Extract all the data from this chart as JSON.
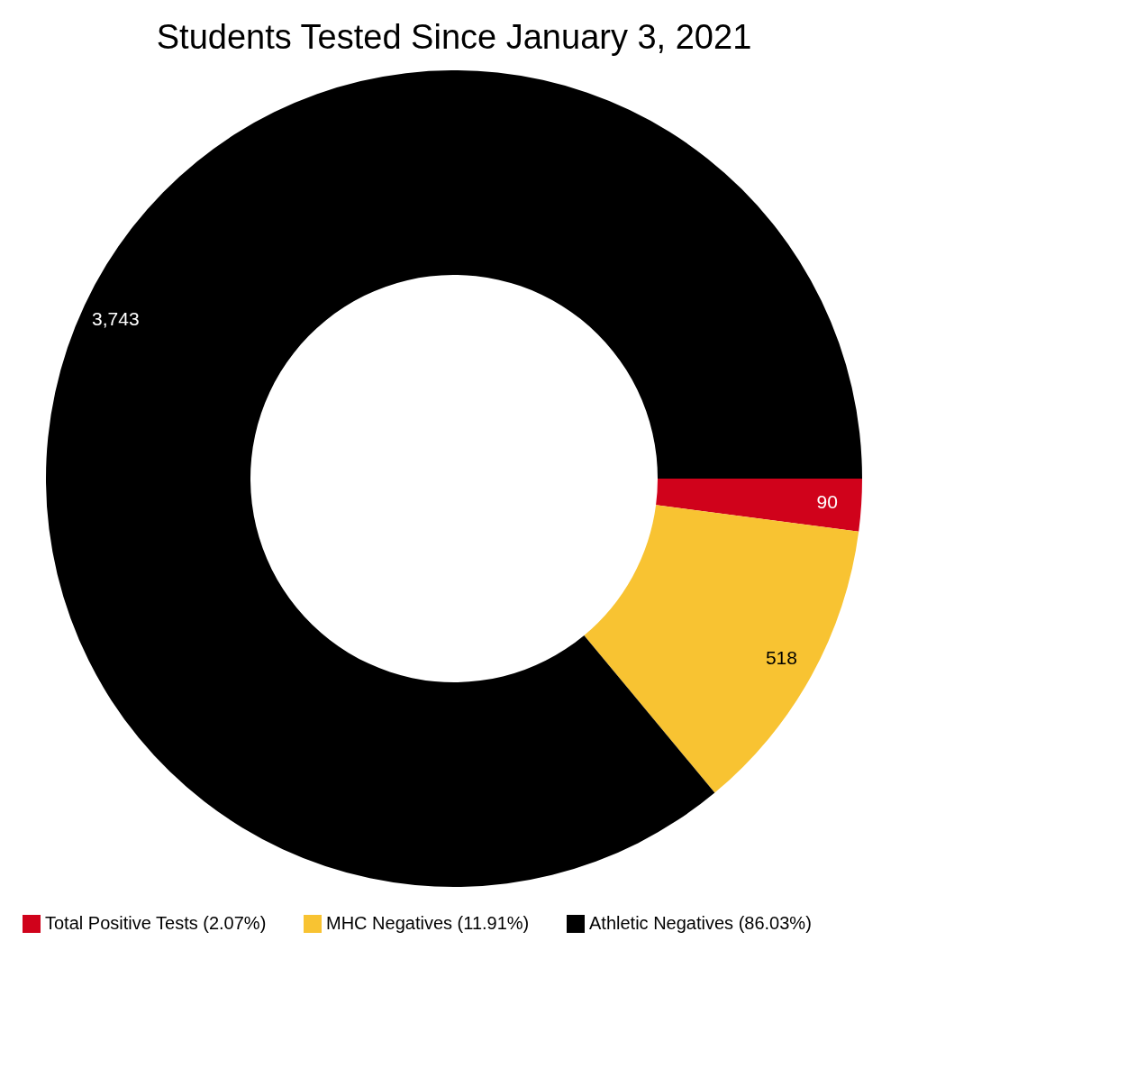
{
  "chart_data": {
    "type": "donut",
    "title": "Students Tested Since January 3, 2021",
    "categories": [
      "Total Positive Tests (2.07%)",
      "MHC Negatives (11.91%)",
      "Athletic Negatives (86.03%)"
    ],
    "values": [
      90,
      518,
      3743
    ],
    "colors": [
      "#d0021b",
      "#f8c332",
      "#000000"
    ],
    "value_labels": [
      "90",
      "518",
      "3,743"
    ],
    "legend": "bottom"
  }
}
